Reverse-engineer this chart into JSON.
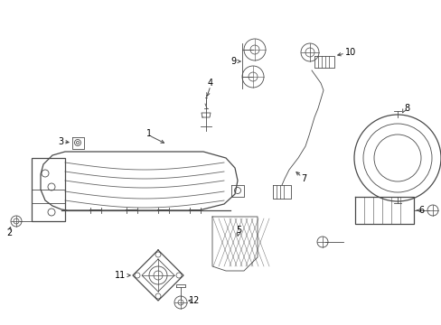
{
  "background_color": "#ffffff",
  "line_color": "#4a4a4a",
  "figsize": [
    4.89,
    3.6
  ],
  "dpi": 100
}
